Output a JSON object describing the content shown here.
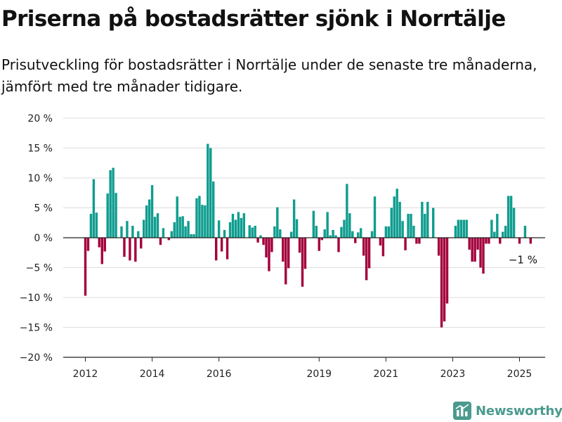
{
  "header": {
    "title": "Priserna på bostadsrätter sjönk i Norrtälje",
    "subtitle": "Prisutveckling för bostadsrätter i Norrtälje under de senaste tre månaderna, jämfört med tre månader tidigare."
  },
  "brand": {
    "name": "Newsworthy",
    "logo_icon": "bar-chart-logo-icon",
    "color": "#4a9a8e"
  },
  "colors": {
    "positive": "#0f9d8f",
    "negative": "#a3003b",
    "grid": "#dddddd",
    "axis": "#222222"
  },
  "chart_data": {
    "type": "bar",
    "title": "Priserna på bostadsrätter sjönk i Norrtälje",
    "ylabel": "",
    "xlabel": "",
    "ylim": [
      -20,
      20
    ],
    "y_ticks": [
      20,
      15,
      10,
      5,
      0,
      -5,
      -10,
      -15,
      -20
    ],
    "y_tick_labels": [
      "20 %",
      "15 %",
      "10 %",
      "5 %",
      "0 %",
      "−5 %",
      "−10 %",
      "−15 %",
      "−20 %"
    ],
    "x_ticks": [
      "2012-01",
      "2014-01",
      "2016-01",
      "2019-01",
      "2021-01",
      "2023-01",
      "2025-01"
    ],
    "x_tick_labels": [
      "2012",
      "2014",
      "2016",
      "2019",
      "2021",
      "2023",
      "2025"
    ],
    "grid": true,
    "annotation": {
      "text": "−1 %",
      "date": "2025-05",
      "value": -1
    },
    "series": [
      {
        "start": "2012-01",
        "dates": [
          "2012-01",
          "2012-02",
          "2012-03",
          "2012-04",
          "2012-05",
          "2012-06",
          "2012-07",
          "2012-08",
          "2012-09",
          "2012-10",
          "2012-11",
          "2012-12",
          "2013-01",
          "2013-02",
          "2013-03",
          "2013-04",
          "2013-05",
          "2013-06",
          "2013-07",
          "2013-08",
          "2013-09",
          "2013-10",
          "2013-11",
          "2013-12",
          "2014-01",
          "2014-02",
          "2014-03",
          "2014-04",
          "2014-05",
          "2014-06",
          "2014-07",
          "2014-08",
          "2014-09",
          "2014-10",
          "2014-11",
          "2014-12",
          "2015-01",
          "2015-02",
          "2015-03",
          "2015-04",
          "2015-05",
          "2015-06",
          "2015-07",
          "2015-08",
          "2015-09",
          "2015-10",
          "2015-11",
          "2015-12",
          "2016-01",
          "2016-02",
          "2016-03",
          "2016-04",
          "2016-05",
          "2016-06",
          "2016-07",
          "2016-08",
          "2016-09",
          "2016-10",
          "2016-11",
          "2016-12",
          "2017-01",
          "2017-02",
          "2017-03",
          "2017-04",
          "2017-05",
          "2017-06",
          "2017-07",
          "2017-08",
          "2017-09",
          "2017-10",
          "2017-11",
          "2017-12",
          "2018-01",
          "2018-02",
          "2018-03",
          "2018-04",
          "2018-05",
          "2018-06",
          "2018-07",
          "2018-08",
          "2018-09",
          "2018-10",
          "2018-11",
          "2018-12",
          "2019-01",
          "2019-02",
          "2019-03",
          "2019-04",
          "2019-05",
          "2019-06",
          "2019-07",
          "2019-08",
          "2019-09",
          "2019-10",
          "2019-11",
          "2019-12",
          "2020-01",
          "2020-02",
          "2020-03",
          "2020-04",
          "2020-05",
          "2020-06",
          "2020-07",
          "2020-08",
          "2020-09",
          "2020-10",
          "2020-11",
          "2020-12",
          "2021-01",
          "2021-02",
          "2021-03",
          "2021-04",
          "2021-05",
          "2021-06",
          "2021-07",
          "2021-08",
          "2021-09",
          "2021-10",
          "2021-11",
          "2021-12",
          "2022-01",
          "2022-02",
          "2022-03",
          "2022-04",
          "2022-05",
          "2022-06",
          "2022-07",
          "2022-08",
          "2022-09",
          "2022-10",
          "2022-11",
          "2022-12",
          "2023-01",
          "2023-02",
          "2023-03",
          "2023-04",
          "2023-05",
          "2023-06",
          "2023-07",
          "2023-08",
          "2023-09",
          "2023-10",
          "2023-11",
          "2023-12",
          "2024-01",
          "2024-02",
          "2024-03",
          "2024-04",
          "2024-05",
          "2024-06",
          "2024-07",
          "2024-08",
          "2024-09",
          "2024-10",
          "2024-11",
          "2024-12",
          "2025-01",
          "2025-02",
          "2025-03",
          "2025-04",
          "2025-05"
        ],
        "values": [
          -9.7,
          -2.2,
          4.0,
          9.8,
          4.2,
          -1.6,
          -4.4,
          -2.3,
          7.4,
          11.3,
          11.7,
          7.5,
          0.0,
          1.9,
          -3.2,
          2.8,
          -3.8,
          2.0,
          -4.0,
          1.1,
          -1.8,
          3.0,
          5.4,
          6.4,
          8.8,
          3.5,
          4.1,
          -1.2,
          1.6,
          0.0,
          -0.4,
          1.1,
          2.6,
          6.9,
          3.5,
          3.6,
          1.9,
          2.8,
          0.6,
          0.6,
          6.6,
          7.0,
          5.5,
          5.4,
          15.7,
          15.0,
          9.4,
          -3.8,
          2.9,
          -2.3,
          1.3,
          -3.6,
          2.6,
          4.0,
          3.0,
          4.3,
          3.3,
          4.1,
          0.0,
          2.1,
          1.7,
          2.0,
          -0.8,
          0.4,
          -1.2,
          -3.3,
          -5.6,
          -2.4,
          1.9,
          5.1,
          1.4,
          -4.0,
          -7.8,
          -5.1,
          1.0,
          6.4,
          3.1,
          -2.5,
          -8.2,
          -5.2,
          0.0,
          0.0,
          4.5,
          2.0,
          -2.2,
          -0.4,
          1.4,
          4.3,
          0.4,
          1.3,
          0.4,
          -2.4,
          1.8,
          3.0,
          9.0,
          4.1,
          1.1,
          -0.9,
          0.9,
          1.6,
          -3.0,
          -7.1,
          -5.1,
          1.1,
          6.9,
          0.0,
          -1.3,
          -3.1,
          1.9,
          1.9,
          5.0,
          6.9,
          8.2,
          6.0,
          2.8,
          -2.1,
          4.0,
          4.0,
          2.0,
          -1.0,
          -1.0,
          6.0,
          4.0,
          6.0,
          0.0,
          5.0,
          0.0,
          -3.0,
          -15.0,
          -14.0,
          -11.0,
          0.0,
          0.0,
          2.0,
          3.0,
          3.0,
          3.0,
          3.0,
          -2.0,
          -4.0,
          -4.0,
          -2.0,
          -5.0,
          -6.0,
          -1.0,
          -1.0,
          3.0,
          1.0,
          4.0,
          -1.0,
          1.0,
          2.0,
          7.0,
          7.0,
          5.0,
          0.0,
          -1.0,
          0.0,
          2.0,
          0.0,
          -1.0
        ]
      }
    ]
  }
}
